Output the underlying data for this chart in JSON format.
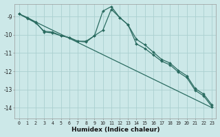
{
  "xlabel": "Humidex (Indice chaleur)",
  "bg_color": "#cce8e8",
  "grid_color": "#aacfcf",
  "line_color": "#2a6b60",
  "xlim": [
    -0.5,
    23.5
  ],
  "ylim": [
    -14.6,
    -8.3
  ],
  "yticks": [
    -9,
    -10,
    -11,
    -12,
    -13,
    -14
  ],
  "xticks": [
    0,
    1,
    2,
    3,
    4,
    5,
    6,
    7,
    8,
    9,
    10,
    11,
    12,
    13,
    14,
    15,
    16,
    17,
    18,
    19,
    20,
    21,
    22,
    23
  ],
  "line1_x": [
    0,
    1,
    2,
    3,
    4,
    5,
    6,
    7,
    8,
    9,
    10,
    11,
    12,
    13,
    14,
    15,
    16,
    17,
    18,
    19,
    20,
    21,
    22,
    23
  ],
  "line1_y": [
    -8.85,
    -9.05,
    -9.3,
    -9.85,
    -9.9,
    -10.05,
    -10.15,
    -10.35,
    -10.35,
    -10.05,
    -9.75,
    -8.6,
    -9.05,
    -9.45,
    -10.25,
    -10.55,
    -10.95,
    -11.35,
    -11.55,
    -11.95,
    -12.25,
    -12.95,
    -13.25,
    -13.85
  ],
  "line2_x": [
    0,
    1,
    2,
    3,
    4,
    5,
    6,
    7,
    8,
    9,
    10,
    11,
    12,
    13,
    14,
    15,
    16,
    17,
    18,
    19,
    20,
    21,
    22,
    23
  ],
  "line2_y": [
    -8.85,
    -9.1,
    -9.35,
    -9.8,
    -9.85,
    -10.05,
    -10.15,
    -10.35,
    -10.4,
    -10.05,
    -8.7,
    -8.45,
    -9.05,
    -9.45,
    -10.5,
    -10.75,
    -11.1,
    -11.45,
    -11.65,
    -12.05,
    -12.35,
    -13.05,
    -13.35,
    -13.95
  ],
  "line3_x": [
    0,
    23
  ],
  "line3_y": [
    -8.85,
    -14.0
  ]
}
